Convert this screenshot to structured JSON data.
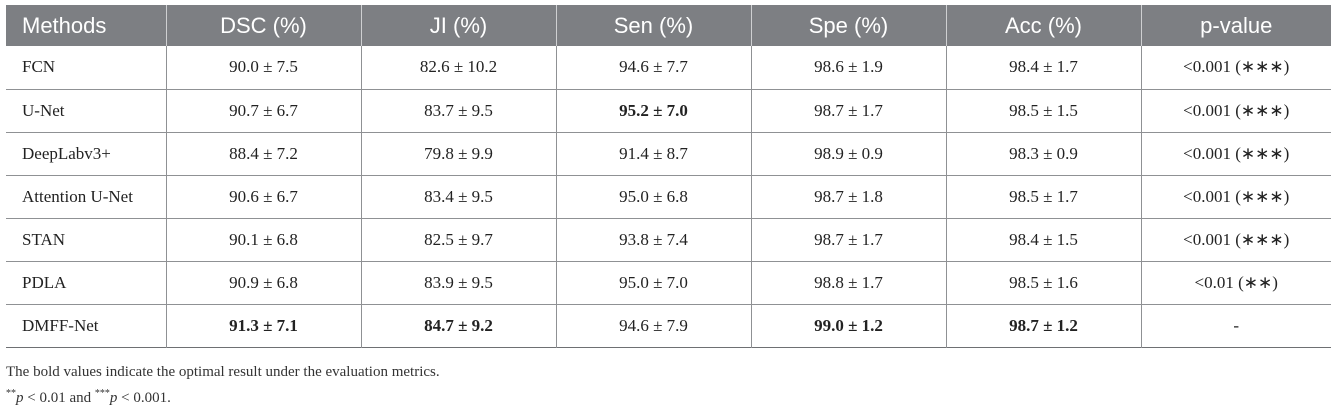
{
  "table": {
    "headers": [
      "Methods",
      "DSC (%)",
      "JI (%)",
      "Sen (%)",
      "Spe (%)",
      "Acc (%)",
      "p-value"
    ],
    "rows": [
      {
        "method": "FCN",
        "dsc": "90.0 ± 7.5",
        "ji": "82.6 ± 10.2",
        "sen": "94.6 ± 7.7",
        "spe": "98.6 ± 1.9",
        "acc": "98.4 ± 1.7",
        "p": "<0.001 (∗∗∗)"
      },
      {
        "method": "U-Net",
        "dsc": "90.7 ± 6.7",
        "ji": "83.7 ± 9.5",
        "sen": "95.2 ± 7.0",
        "spe": "98.7 ± 1.7",
        "acc": "98.5 ± 1.5",
        "p": "<0.001 (∗∗∗)"
      },
      {
        "method": "DeepLabv3+",
        "dsc": "88.4 ± 7.2",
        "ji": "79.8 ± 9.9",
        "sen": "91.4 ± 8.7",
        "spe": "98.9 ± 0.9",
        "acc": "98.3 ± 0.9",
        "p": "<0.001 (∗∗∗)"
      },
      {
        "method": "Attention U-Net",
        "dsc": "90.6 ± 6.7",
        "ji": "83.4 ± 9.5",
        "sen": "95.0 ± 6.8",
        "spe": "98.7 ± 1.8",
        "acc": "98.5 ± 1.7",
        "p": "<0.001 (∗∗∗)"
      },
      {
        "method": "STAN",
        "dsc": "90.1 ± 6.8",
        "ji": "82.5 ± 9.7",
        "sen": "93.8 ± 7.4",
        "spe": "98.7 ± 1.7",
        "acc": "98.4 ± 1.5",
        "p": "<0.001 (∗∗∗)"
      },
      {
        "method": "PDLA",
        "dsc": "90.9 ± 6.8",
        "ji": "83.9 ± 9.5",
        "sen": "95.0 ± 7.0",
        "spe": "98.8 ± 1.7",
        "acc": "98.5 ± 1.6",
        "p": "<0.01 (∗∗)"
      },
      {
        "method": "DMFF-Net",
        "dsc": "91.3 ± 7.1",
        "ji": "84.7 ± 9.2",
        "sen": "94.6 ± 7.9",
        "spe": "99.0 ± 1.2",
        "acc": "98.7 ± 1.2",
        "p": "-"
      }
    ]
  },
  "notes": {
    "bold_note": "The bold values indicate the optimal result under the evaluation metrics.",
    "sig_stars_1": "**",
    "sig_p1": "p",
    "sig_lt1": " < 0.01 and ",
    "sig_stars_2": "***",
    "sig_p2": "p",
    "sig_lt2": " < 0.001."
  }
}
